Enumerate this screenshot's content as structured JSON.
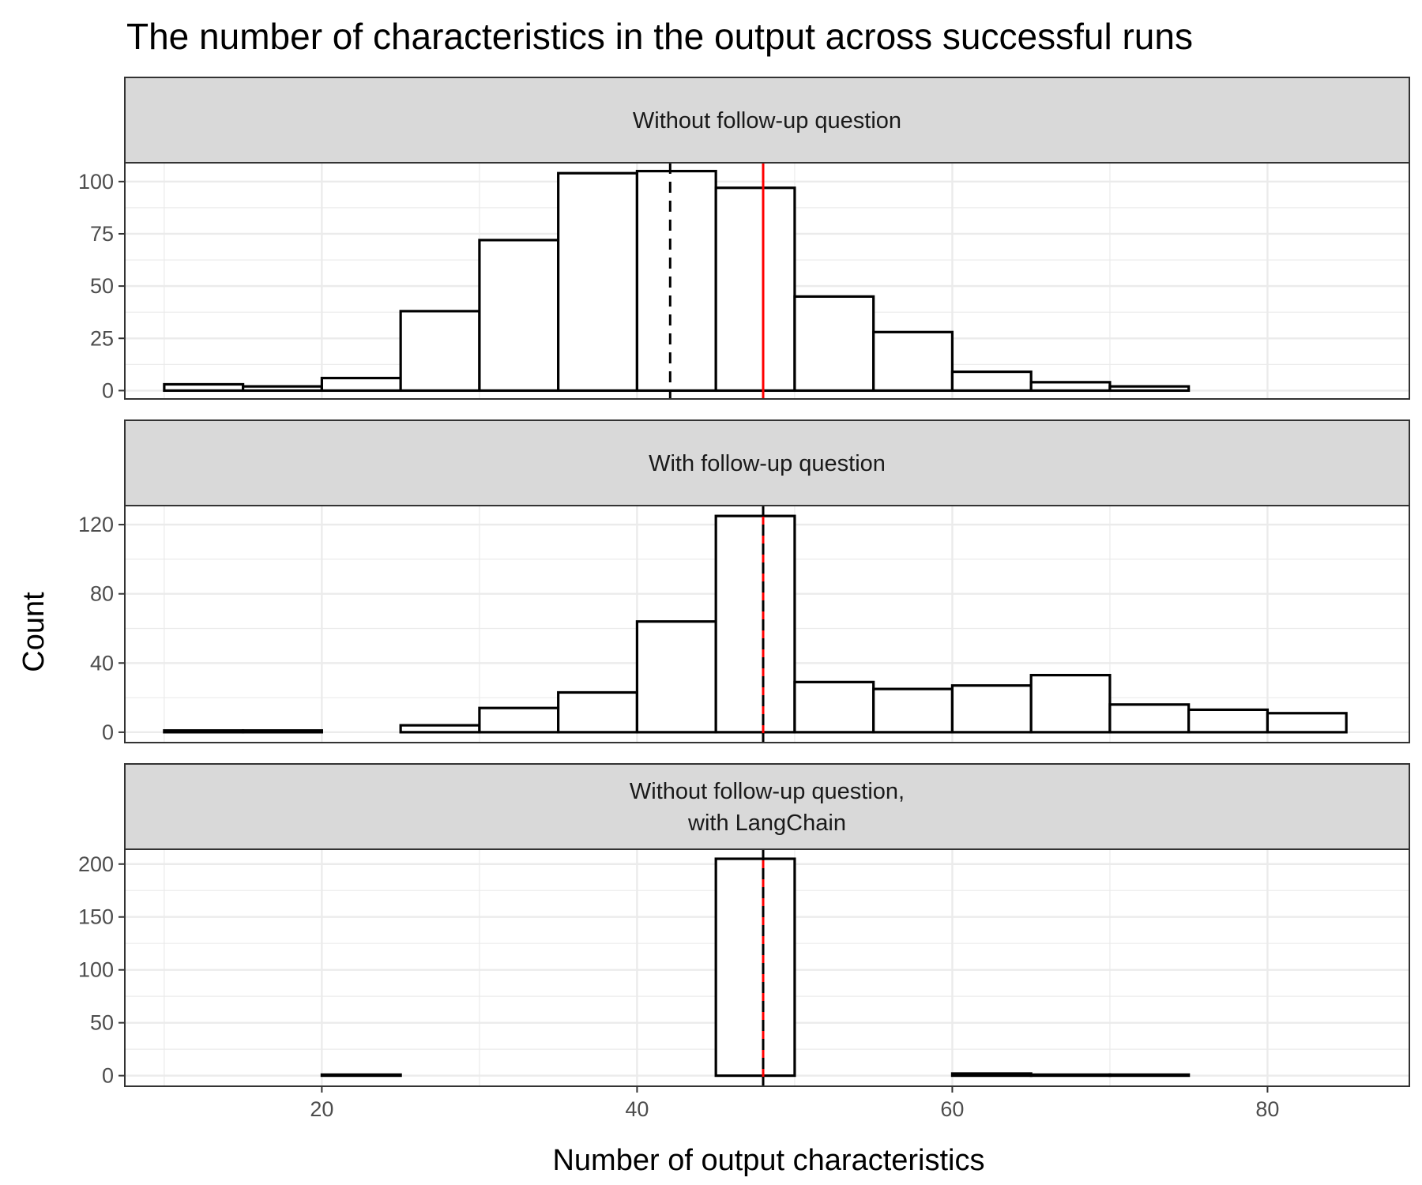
{
  "chart_data": {
    "type": "bar",
    "title": "The number of characteristics in the output across successful runs",
    "xlabel": "Number of output characteristics",
    "ylabel": "Count",
    "xlim": [
      7.5,
      89.0
    ],
    "x_ticks": [
      20,
      40,
      60,
      80
    ],
    "bin_width": 5,
    "bin_starts": [
      10,
      15,
      20,
      25,
      30,
      35,
      40,
      45,
      50,
      55,
      60,
      65,
      70,
      75,
      80
    ],
    "grid": true,
    "colors": {
      "bar_fill": "#ffffff",
      "bar_stroke": "#000000",
      "mean_line": "#000000",
      "reference_line": "#ff0000",
      "strip_fill": "#d9d9d9",
      "grid": "#ebebeb"
    },
    "panels": [
      {
        "strip": [
          "Without follow-up question"
        ],
        "values": [
          3,
          2,
          6,
          38,
          72,
          104,
          105,
          97,
          45,
          28,
          9,
          4,
          2,
          0,
          0
        ],
        "ylim": [
          -4,
          109
        ],
        "y_ticks": [
          0,
          25,
          50,
          75,
          100
        ],
        "dashed_line_x": 42.1,
        "red_line_x": 48
      },
      {
        "strip": [
          "With follow-up question"
        ],
        "values": [
          1,
          1,
          0,
          4,
          14,
          23,
          64,
          125,
          29,
          25,
          27,
          33,
          16,
          13,
          11
        ],
        "ylim": [
          -6,
          131
        ],
        "y_ticks": [
          0,
          40,
          80,
          120
        ],
        "dashed_line_x": 48,
        "red_line_x": 48
      },
      {
        "strip": [
          "Without follow-up question,",
          "with LangChain"
        ],
        "values": [
          0,
          0,
          1,
          0,
          0,
          0,
          0,
          205,
          0,
          0,
          2,
          1,
          1,
          0,
          0
        ],
        "ylim": [
          -10,
          214
        ],
        "y_ticks": [
          0,
          50,
          100,
          150,
          200
        ],
        "dashed_line_x": 48,
        "red_line_x": 48
      }
    ]
  }
}
